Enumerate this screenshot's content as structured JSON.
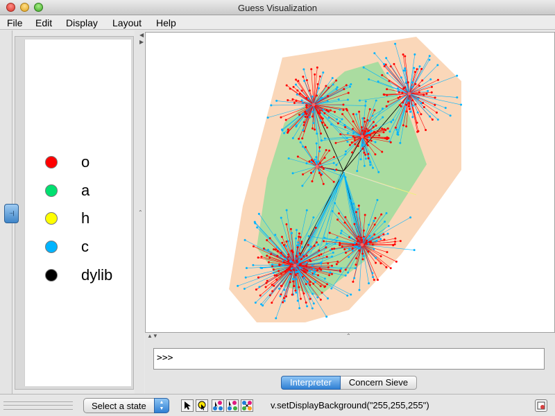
{
  "window": {
    "title": "Guess Visualization"
  },
  "menu": [
    "File",
    "Edit",
    "Display",
    "Layout",
    "Help"
  ],
  "legend": [
    {
      "label": "o",
      "color": "#ff0000"
    },
    {
      "label": "a",
      "color": "#00e070"
    },
    {
      "label": "h",
      "color": "#ffff00"
    },
    {
      "label": "c",
      "color": "#00b4ff"
    },
    {
      "label": "dylib",
      "color": "#000000"
    }
  ],
  "side_handle_glyph": "···|",
  "graph": {
    "hull_outer_color": "#fad7b9",
    "hull_inner_color": "#aadca0",
    "edge_colors": {
      "o": "#ff0000",
      "c": "#00b4ff",
      "dylib": "#000000"
    }
  },
  "console": {
    "prompt": ">>>",
    "tabs": [
      "Interpreter",
      "Concern Sieve"
    ],
    "active_tab": "Interpreter"
  },
  "status": {
    "state_select": "Select a state",
    "tools": [
      "arrow-select-icon",
      "zoom-select-icon",
      "node-edit-icon",
      "node-move-icon",
      "graph-layout-icon"
    ],
    "message": "v.setDisplayBackground(\"255,255,255\")"
  }
}
